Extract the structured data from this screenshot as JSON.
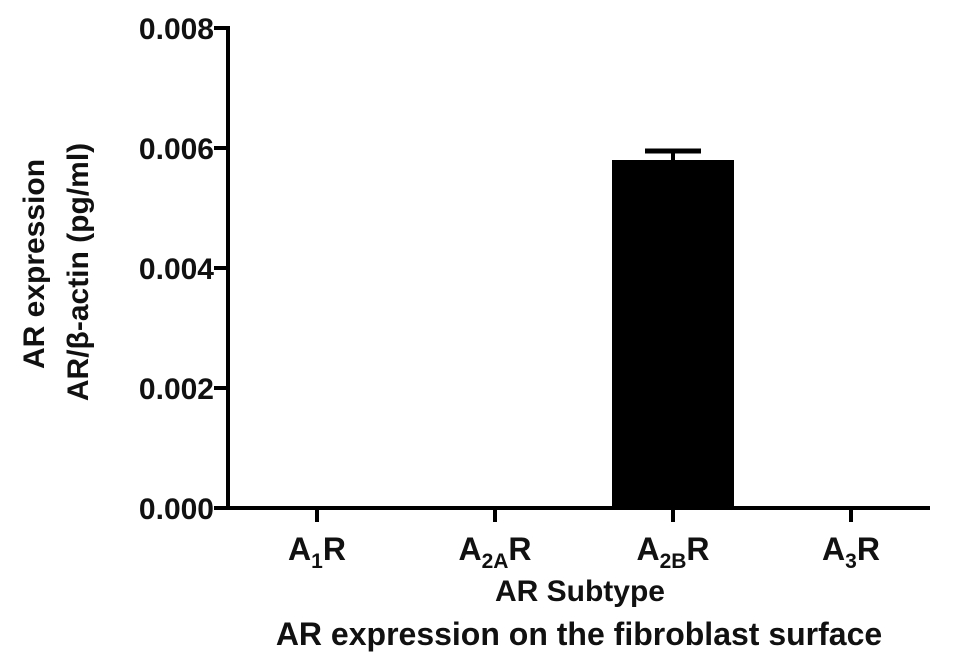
{
  "chart_data": {
    "type": "bar",
    "categories": [
      {
        "main": "A",
        "sub": "1",
        "suffix": "R"
      },
      {
        "main": "A",
        "sub": "2A",
        "suffix": "R"
      },
      {
        "main": "A",
        "sub": "2B",
        "suffix": "R"
      },
      {
        "main": "A",
        "sub": "3",
        "suffix": "R"
      }
    ],
    "values": [
      0,
      0,
      0.0058,
      0
    ],
    "errors": [
      0,
      0,
      0.00015,
      0
    ],
    "bar_color": "#000000",
    "ylim": [
      0,
      0.008
    ],
    "yticks": [
      "0.000",
      "0.002",
      "0.004",
      "0.006",
      "0.008"
    ],
    "ylabel_line1": "AR expression",
    "ylabel_line2": "AR/β-actin (pg/ml)",
    "xlabel": "AR Subtype",
    "caption": "AR expression on the fibroblast surface",
    "grid": false
  }
}
